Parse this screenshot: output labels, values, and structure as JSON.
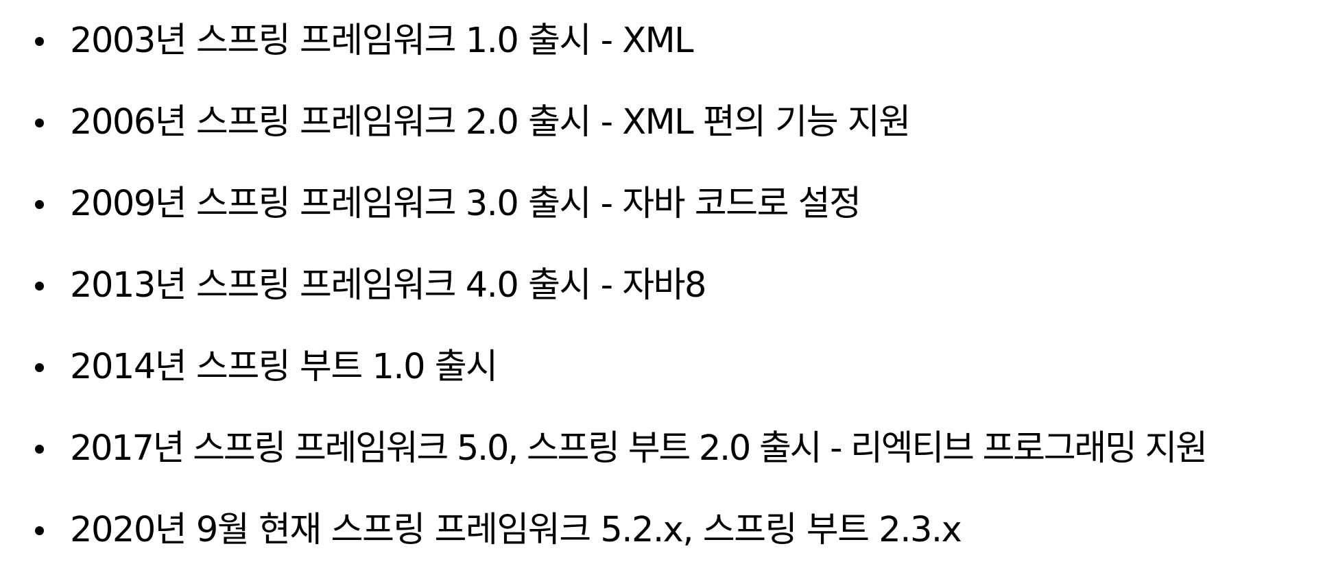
{
  "history": {
    "items": [
      {
        "text": "2003년 스프링 프레임워크 1.0 출시 - XML"
      },
      {
        "text": "2006년 스프링 프레임워크 2.0 출시 - XML 편의 기능 지원"
      },
      {
        "text": "2009년 스프링 프레임워크 3.0 출시 - 자바 코드로 설정"
      },
      {
        "text": "2013년 스프링 프레임워크 4.0 출시 - 자바8"
      },
      {
        "text": "2014년 스프링 부트 1.0 출시"
      },
      {
        "text": "2017년 스프링 프레임워크 5.0, 스프링 부트 2.0 출시 - 리엑티브 프로그래밍 지원"
      },
      {
        "text": "2020년 9월 현재 스프링 프레임워크 5.2.x, 스프링 부트 2.3.x"
      }
    ]
  }
}
